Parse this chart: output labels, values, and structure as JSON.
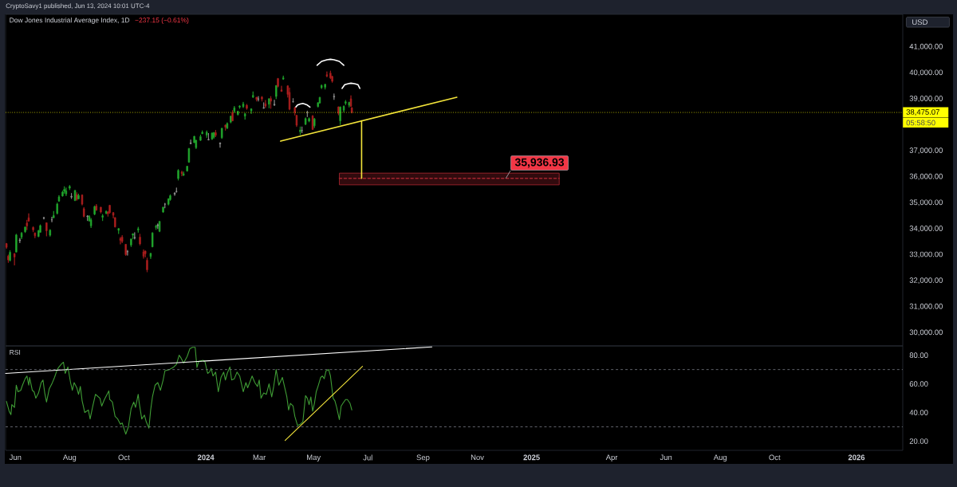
{
  "chart_data": [
    {
      "type": "candlestick",
      "title": "Dow Jones Industrial Average Index, 1D",
      "subtitle": "−237.15 (−0.61%)",
      "ylabel": "USD",
      "annotations": [
        "CryptoSavy1 published, Jun 13, 2024 10:01 UTC-4",
        "05:58:50",
        {
          "text": "35,936.93",
          "x": "2024-12-03",
          "y": 35936.93
        }
      ],
      "x": [
        "2023-05-22",
        "2023-05-24",
        "2023-05-26",
        "2023-05-31",
        "2023-06-02",
        "2023-06-06",
        "2023-06-08",
        "2023-06-12",
        "2023-06-14",
        "2023-06-16",
        "2023-06-21",
        "2023-06-23",
        "2023-06-27",
        "2023-06-29",
        "2023-07-03",
        "2023-07-06",
        "2023-07-10",
        "2023-07-12",
        "2023-07-14",
        "2023-07-18",
        "2023-07-20",
        "2023-07-24",
        "2023-07-26",
        "2023-07-28",
        "2023-08-01",
        "2023-08-03",
        "2023-08-07",
        "2023-08-09",
        "2023-08-11",
        "2023-08-15",
        "2023-08-17",
        "2023-08-21",
        "2023-08-23",
        "2023-08-25",
        "2023-08-29",
        "2023-08-31",
        "2023-09-05",
        "2023-09-07",
        "2023-09-11",
        "2023-09-13",
        "2023-09-15",
        "2023-09-19",
        "2023-09-21",
        "2023-09-25",
        "2023-09-27",
        "2023-09-29",
        "2023-10-03",
        "2023-10-05",
        "2023-10-09",
        "2023-10-11",
        "2023-10-13",
        "2023-10-17",
        "2023-10-19",
        "2023-10-23",
        "2023-10-25",
        "2023-10-27",
        "2023-10-31",
        "2023-11-02",
        "2023-11-06",
        "2023-11-08",
        "2023-11-10",
        "2023-11-14",
        "2023-11-16",
        "2023-11-20",
        "2023-11-22",
        "2023-11-27",
        "2023-11-29",
        "2023-12-01",
        "2023-12-05",
        "2023-12-07",
        "2023-12-11",
        "2023-12-13",
        "2023-12-15",
        "2023-12-19",
        "2023-12-21",
        "2023-12-26",
        "2023-12-28",
        "2024-01-02",
        "2024-01-04",
        "2024-01-08",
        "2024-01-10",
        "2024-01-12",
        "2024-01-17",
        "2024-01-19",
        "2024-01-23",
        "2024-01-25",
        "2024-01-29",
        "2024-01-31",
        "2024-02-02",
        "2024-02-06",
        "2024-02-08",
        "2024-02-12",
        "2024-02-14",
        "2024-02-16",
        "2024-02-21",
        "2024-02-23",
        "2024-02-27",
        "2024-02-29",
        "2024-03-04",
        "2024-03-06",
        "2024-03-08",
        "2024-03-12",
        "2024-03-14",
        "2024-03-18",
        "2024-03-20",
        "2024-03-22",
        "2024-03-26",
        "2024-03-28",
        "2024-04-02",
        "2024-04-04",
        "2024-04-08",
        "2024-04-10",
        "2024-04-12",
        "2024-04-16",
        "2024-04-18",
        "2024-04-22",
        "2024-04-24",
        "2024-04-26",
        "2024-04-30",
        "2024-05-02",
        "2024-05-06",
        "2024-05-08",
        "2024-05-10",
        "2024-05-14",
        "2024-05-16",
        "2024-05-20",
        "2024-05-22",
        "2024-05-24",
        "2024-05-29",
        "2024-05-31",
        "2024-06-04",
        "2024-06-06",
        "2024-06-10",
        "2024-06-12",
        "2024-06-13"
      ],
      "ohlc": [
        [
          33430,
          33450,
          33230,
          33286
        ],
        [
          32950,
          33000,
          32690,
          32800
        ],
        [
          32780,
          33170,
          32740,
          33093
        ],
        [
          33040,
          33060,
          32590,
          32908
        ],
        [
          33100,
          33800,
          33090,
          33762
        ],
        [
          33540,
          33640,
          33450,
          33573
        ],
        [
          33680,
          33870,
          33600,
          33833
        ],
        [
          33880,
          34080,
          33840,
          34066
        ],
        [
          34220,
          34340,
          33950,
          34108
        ],
        [
          34420,
          34590,
          34270,
          34299
        ],
        [
          34050,
          34090,
          33870,
          33952
        ],
        [
          33840,
          33850,
          33640,
          33727
        ],
        [
          33700,
          33950,
          33680,
          33927
        ],
        [
          33860,
          34160,
          33850,
          34122
        ],
        [
          34400,
          34460,
          34360,
          34418
        ],
        [
          34230,
          34240,
          33710,
          33922
        ],
        [
          33750,
          33980,
          33700,
          33944
        ],
        [
          34340,
          34460,
          34250,
          34347
        ],
        [
          34420,
          34680,
          34400,
          34509
        ],
        [
          34590,
          35000,
          34550,
          34952
        ],
        [
          35060,
          35290,
          35040,
          35225
        ],
        [
          35260,
          35460,
          35240,
          35411
        ],
        [
          35440,
          35630,
          35350,
          35520
        ],
        [
          35340,
          35580,
          35260,
          35459
        ],
        [
          35560,
          35680,
          35490,
          35630
        ],
        [
          35250,
          35370,
          35150,
          35216
        ],
        [
          35080,
          35490,
          35070,
          35473
        ],
        [
          35320,
          35400,
          35080,
          35124
        ],
        [
          35150,
          35350,
          35130,
          35281
        ],
        [
          35300,
          35310,
          34900,
          34946
        ],
        [
          34770,
          34830,
          34440,
          34475
        ],
        [
          34490,
          34520,
          34300,
          34464
        ],
        [
          34300,
          34520,
          34280,
          34473
        ],
        [
          34110,
          34410,
          34030,
          34347
        ],
        [
          34560,
          34890,
          34520,
          34853
        ],
        [
          34880,
          34950,
          34690,
          34722
        ],
        [
          34830,
          34840,
          34590,
          34642
        ],
        [
          34440,
          34560,
          34300,
          34501
        ],
        [
          34600,
          34700,
          34560,
          34664
        ],
        [
          34640,
          34680,
          34470,
          34576
        ],
        [
          34900,
          34920,
          34580,
          34619
        ],
        [
          34620,
          34640,
          34400,
          34518
        ],
        [
          34430,
          34440,
          34050,
          34070
        ],
        [
          33940,
          34020,
          33800,
          34007
        ],
        [
          33620,
          33680,
          33400,
          33551
        ],
        [
          33680,
          33750,
          33450,
          33508
        ],
        [
          33400,
          33410,
          32960,
          33002
        ],
        [
          33110,
          33180,
          32970,
          33120
        ],
        [
          33370,
          33620,
          33300,
          33604
        ],
        [
          33750,
          33820,
          33600,
          33804
        ],
        [
          33640,
          33860,
          33590,
          33670
        ],
        [
          33950,
          34070,
          33850,
          33998
        ],
        [
          33680,
          33800,
          33360,
          33415
        ],
        [
          33110,
          33200,
          32850,
          32937
        ],
        [
          33140,
          33160,
          32900,
          33036
        ],
        [
          32790,
          32880,
          32330,
          32418
        ],
        [
          32930,
          33060,
          32840,
          33053
        ],
        [
          33300,
          33860,
          33290,
          33840
        ],
        [
          34050,
          34150,
          33960,
          34096
        ],
        [
          34150,
          34200,
          33990,
          34112
        ],
        [
          33900,
          34290,
          33870,
          34283
        ],
        [
          34640,
          34850,
          34610,
          34828
        ],
        [
          34950,
          34990,
          34790,
          34945
        ],
        [
          34940,
          35170,
          34900,
          35151
        ],
        [
          35120,
          35320,
          35080,
          35273
        ],
        [
          35370,
          35400,
          35270,
          35333
        ],
        [
          35440,
          35580,
          35390,
          35430
        ],
        [
          35930,
          36290,
          35860,
          36246
        ],
        [
          36180,
          36230,
          36020,
          36125
        ],
        [
          36060,
          36200,
          36030,
          36117
        ],
        [
          36220,
          36420,
          36200,
          36405
        ],
        [
          36560,
          37100,
          36540,
          37090
        ],
        [
          37270,
          37430,
          37250,
          37305
        ],
        [
          37310,
          37570,
          37300,
          37557
        ],
        [
          37120,
          37420,
          37070,
          37405
        ],
        [
          37400,
          37620,
          37380,
          37545
        ],
        [
          37660,
          37780,
          37640,
          37710
        ],
        [
          37600,
          37780,
          37500,
          37715
        ],
        [
          37420,
          37680,
          37400,
          37440
        ],
        [
          37450,
          37700,
          37420,
          37683
        ],
        [
          37520,
          37720,
          37470,
          37696
        ],
        [
          37700,
          37800,
          37530,
          37593
        ],
        [
          37300,
          37320,
          37120,
          37267
        ],
        [
          37500,
          37880,
          37460,
          37864
        ],
        [
          37990,
          38010,
          37780,
          37906
        ],
        [
          37870,
          38090,
          37840,
          38049
        ],
        [
          38100,
          38350,
          38060,
          38333
        ],
        [
          38460,
          38560,
          38140,
          38150
        ],
        [
          38520,
          38720,
          38460,
          38654
        ],
        [
          38390,
          38540,
          38360,
          38521
        ],
        [
          38680,
          38750,
          38620,
          38726
        ],
        [
          38700,
          38880,
          38650,
          38797
        ],
        [
          38330,
          38450,
          38200,
          38424
        ],
        [
          38750,
          38800,
          38580,
          38628
        ],
        [
          38540,
          38630,
          38420,
          38612
        ],
        [
          39070,
          39280,
          39030,
          39131
        ],
        [
          39060,
          39070,
          38900,
          38972
        ],
        [
          38990,
          39100,
          38900,
          38996
        ],
        [
          39070,
          39100,
          38900,
          38990
        ],
        [
          38640,
          38860,
          38620,
          38661
        ],
        [
          38810,
          38950,
          38650,
          38723
        ],
        [
          38790,
          39010,
          38640,
          39005
        ],
        [
          39010,
          39100,
          38620,
          38906
        ],
        [
          38760,
          38960,
          38730,
          38790
        ],
        [
          39090,
          39520,
          38990,
          39512
        ],
        [
          39780,
          39800,
          39440,
          39476
        ],
        [
          39340,
          39500,
          39280,
          39282
        ],
        [
          39760,
          39890,
          39730,
          39807
        ],
        [
          39500,
          39520,
          39050,
          39170
        ],
        [
          39250,
          39430,
          38560,
          38597
        ],
        [
          38900,
          39020,
          38850,
          38892
        ],
        [
          38660,
          38690,
          38360,
          38462
        ],
        [
          38360,
          38380,
          37920,
          37983
        ],
        [
          37730,
          37930,
          37610,
          37799
        ],
        [
          37780,
          37930,
          37680,
          37775
        ],
        [
          38020,
          38280,
          37990,
          38240
        ],
        [
          38480,
          38540,
          38300,
          38461
        ],
        [
          38140,
          38280,
          38100,
          38240
        ],
        [
          38340,
          38370,
          37810,
          37816
        ],
        [
          37960,
          38260,
          37880,
          38226
        ],
        [
          38700,
          38860,
          38670,
          38852
        ],
        [
          38840,
          39070,
          38820,
          39056
        ],
        [
          39430,
          39550,
          39380,
          39513
        ],
        [
          39440,
          39570,
          39360,
          39558
        ],
        [
          39930,
          40050,
          39830,
          39869
        ],
        [
          39990,
          40080,
          39760,
          39807
        ],
        [
          39860,
          39890,
          39620,
          39672
        ],
        [
          39100,
          39200,
          38960,
          39070
        ],
        [
          38690,
          38700,
          38370,
          38442
        ],
        [
          38150,
          38700,
          38000,
          38686
        ],
        [
          38560,
          38740,
          38480,
          38711
        ],
        [
          38830,
          38950,
          38760,
          38886
        ],
        [
          38750,
          38880,
          38670,
          38868
        ],
        [
          39000,
          39130,
          38690,
          38712
        ],
        [
          38660,
          38670,
          38440,
          38475.07
        ]
      ],
      "colors": [
        "#b0201f",
        "#b0201f",
        "#22ab2e",
        "#b0201f",
        "#22ab2e",
        "#9a9a9a",
        "#22ab2e",
        "#22ab2e",
        "#b0201f",
        "#b0201f",
        "#b0201f",
        "#b0201f",
        "#22ab2e",
        "#22ab2e",
        "#9a9a9a",
        "#b0201f",
        "#22ab2e",
        "#9a9a9a",
        "#22ab2e",
        "#22ab2e",
        "#22ab2e",
        "#22ab2e",
        "#22ab2e",
        "#22ab2e",
        "#22ab2e",
        "#9a9a9a",
        "#22ab2e",
        "#b0201f",
        "#22ab2e",
        "#b0201f",
        "#b0201f",
        "#9a9a9a",
        "#22ab2e",
        "#22ab2e",
        "#22ab2e",
        "#b0201f",
        "#b0201f",
        "#22ab2e",
        "#22ab2e",
        "#b0201f",
        "#b0201f",
        "#b0201f",
        "#b0201f",
        "#22ab2e",
        "#b0201f",
        "#b0201f",
        "#b0201f",
        "#9a9a9a",
        "#22ab2e",
        "#22ab2e",
        "#9a9a9a",
        "#22ab2e",
        "#b0201f",
        "#b0201f",
        "#b0201f",
        "#b0201f",
        "#22ab2e",
        "#22ab2e",
        "#22ab2e",
        "#9a9a9a",
        "#22ab2e",
        "#22ab2e",
        "#9a9a9a",
        "#22ab2e",
        "#22ab2e",
        "#9a9a9a",
        "#9a9a9a",
        "#22ab2e",
        "#b0201f",
        "#22ab2e",
        "#22ab2e",
        "#22ab2e",
        "#9a9a9a",
        "#22ab2e",
        "#22ab2e",
        "#22ab2e",
        "#22ab2e",
        "#22ab2e",
        "#9a9a9a",
        "#22ab2e",
        "#22ab2e",
        "#b0201f",
        "#9a9a9a",
        "#22ab2e",
        "#b0201f",
        "#22ab2e",
        "#22ab2e",
        "#b0201f",
        "#22ab2e",
        "#22ab2e",
        "#22ab2e",
        "#22ab2e",
        "#22ab2e",
        "#b0201f",
        "#22ab2e",
        "#22ab2e",
        "#b0201f",
        "#9a9a9a",
        "#b0201f",
        "#9a9a9a",
        "#b0201f",
        "#22ab2e",
        "#b0201f",
        "#9a9a9a",
        "#22ab2e",
        "#b0201f",
        "#b0201f",
        "#22ab2e",
        "#b0201f",
        "#b0201f",
        "#9a9a9a",
        "#b0201f",
        "#b0201f",
        "#22ab2e",
        "#9a9a9a",
        "#22ab2e",
        "#9a9a9a",
        "#22ab2e",
        "#b0201f",
        "#22ab2e",
        "#22ab2e",
        "#22ab2e",
        "#22ab2e",
        "#22ab2e",
        "#b0201f",
        "#b0201f",
        "#b0201f",
        "#9a9a9a",
        "#b0201f",
        "#22ab2e",
        "#22ab2e",
        "#22ab2e",
        "#22ab2e",
        "#b0201f",
        "#b0201f"
      ],
      "series": [
        {
          "type": "line",
          "color": "#a3242e",
          "line_style": "dashed",
          "x": [
            "2024-05-30",
            "2025-02-01"
          ],
          "values": [
            35936.93,
            35936.93
          ],
          "lower": [
            35690,
            35690
          ],
          "upper": [
            36140,
            36140
          ]
        },
        {
          "type": "line",
          "color": "#f2e33a",
          "x": [
            "2024-03-25",
            "2024-10-09"
          ],
          "values": [
            37370,
            39060
          ]
        },
        {
          "type": "line",
          "color": "#f2e33a",
          "x": [
            "2024-06-24",
            "2024-06-24"
          ],
          "values": [
            38150,
            35940
          ]
        },
        {
          "type": "line",
          "color": "#ffffff",
          "x": [
            "2024-04-11",
            "2024-04-13",
            "2024-04-16",
            "2024-04-19",
            "2024-04-21",
            "2024-04-24",
            "2024-04-27"
          ],
          "values": [
            38680,
            38760,
            38800,
            38820,
            38800,
            38760,
            38680
          ]
        },
        {
          "type": "line",
          "color": "#ffffff",
          "x": [
            "2024-05-05",
            "2024-05-10",
            "2024-05-16",
            "2024-05-20",
            "2024-05-24",
            "2024-05-30",
            "2024-06-04"
          ],
          "values": [
            40290,
            40440,
            40500,
            40520,
            40500,
            40440,
            40290
          ]
        },
        {
          "type": "line",
          "color": "#ffffff",
          "x": [
            "2024-06-02",
            "2024-06-05",
            "2024-06-09",
            "2024-06-12",
            "2024-06-16",
            "2024-06-20",
            "2024-06-22"
          ],
          "values": [
            39400,
            39540,
            39580,
            39600,
            39580,
            39540,
            39400
          ]
        }
      ],
      "xlim": [
        "2023-05-21",
        "2026-02-22"
      ],
      "ylim": [
        29490,
        42250
      ],
      "yticks": [
        {
          "value": 30000,
          "label": "30,000.00"
        },
        {
          "value": 31000,
          "label": "31,000.00"
        },
        {
          "value": 32000,
          "label": "32,000.00"
        },
        {
          "value": 33000,
          "label": "33,000.00"
        },
        {
          "value": 34000,
          "label": "34,000.00"
        },
        {
          "value": 35000,
          "label": "35,000.00"
        },
        {
          "value": 36000,
          "label": "36,000.00"
        },
        {
          "value": 37000,
          "label": "37,000.00"
        },
        {
          "value": 39000,
          "label": "39,000.00"
        },
        {
          "value": 40000,
          "label": "40,000.00"
        },
        {
          "value": 41000,
          "label": "41,000.00"
        }
      ],
      "tick_labels": "y",
      "ref_lines": [
        {
          "axis": "y",
          "value": 38475.07,
          "label": "38,475.07",
          "color": "#ffff00",
          "line_style": "dotted"
        }
      ]
    },
    {
      "type": "line",
      "title": "RSI",
      "series": [
        {
          "color": "#3f9c35",
          "x": [
            "2023-05-22",
            "2023-05-25",
            "2023-05-27",
            "2023-05-28",
            "2023-05-31",
            "2023-06-02",
            "2023-06-04",
            "2023-06-07",
            "2023-06-09",
            "2023-06-12",
            "2023-06-14",
            "2023-06-16",
            "2023-06-17",
            "2023-06-20",
            "2023-06-22",
            "2023-06-24",
            "2023-06-27",
            "2023-06-30",
            "2023-07-02",
            "2023-07-04",
            "2023-07-06",
            "2023-07-09",
            "2023-07-12",
            "2023-07-15",
            "2023-07-18",
            "2023-07-20",
            "2023-07-23",
            "2023-07-25",
            "2023-07-27",
            "2023-07-30",
            "2023-08-02",
            "2023-08-04",
            "2023-08-06",
            "2023-08-09",
            "2023-08-11",
            "2023-08-13",
            "2023-08-15",
            "2023-08-18",
            "2023-08-22",
            "2023-08-24",
            "2023-08-27",
            "2023-08-30",
            "2023-09-04",
            "2023-09-06",
            "2023-09-09",
            "2023-09-14",
            "2023-09-15",
            "2023-09-18",
            "2023-09-21",
            "2023-09-24",
            "2023-09-27",
            "2023-09-29",
            "2023-10-03",
            "2023-10-06",
            "2023-10-09",
            "2023-10-12",
            "2023-10-14",
            "2023-10-17",
            "2023-10-18",
            "2023-10-21",
            "2023-10-24",
            "2023-10-26",
            "2023-10-29",
            "2023-10-31",
            "2023-11-02",
            "2023-11-05",
            "2023-11-08",
            "2023-11-11",
            "2023-11-14",
            "2023-11-16",
            "2023-11-21",
            "2023-11-26",
            "2023-11-29",
            "2023-12-02",
            "2023-12-04",
            "2023-12-07",
            "2023-12-11",
            "2023-12-14",
            "2023-12-17",
            "2023-12-20",
            "2023-12-22",
            "2023-12-24",
            "2023-12-29",
            "2023-12-31",
            "2024-01-03",
            "2024-01-05",
            "2024-01-07",
            "2024-01-09",
            "2024-01-12",
            "2024-01-15",
            "2024-01-18",
            "2024-01-21",
            "2024-01-23",
            "2024-01-25",
            "2024-01-28",
            "2024-01-30",
            "2024-02-02",
            "2024-02-05",
            "2024-02-08",
            "2024-02-12",
            "2024-02-15",
            "2024-02-17",
            "2024-02-22",
            "2024-02-25",
            "2024-02-28",
            "2024-03-01",
            "2024-03-03",
            "2024-03-06",
            "2024-03-09",
            "2024-03-12",
            "2024-03-15",
            "2024-03-17",
            "2024-03-20",
            "2024-03-23",
            "2024-03-27",
            "2024-03-30",
            "2024-04-01",
            "2024-04-03",
            "2024-04-05",
            "2024-04-08",
            "2024-04-10",
            "2024-04-13",
            "2024-04-16",
            "2024-04-19",
            "2024-04-22",
            "2024-04-24",
            "2024-04-26",
            "2024-04-28",
            "2024-04-30",
            "2024-05-02",
            "2024-05-04",
            "2024-05-06",
            "2024-05-09",
            "2024-05-11",
            "2024-05-13",
            "2024-05-15",
            "2024-05-18",
            "2024-05-20",
            "2024-05-23",
            "2024-05-25",
            "2024-05-27",
            "2024-05-30",
            "2024-06-01",
            "2024-06-03",
            "2024-06-06",
            "2024-06-08",
            "2024-06-11",
            "2024-06-13"
          ],
          "values": [
            47.8,
            40.9,
            38.5,
            45.5,
            43.6,
            59.1,
            54.5,
            55.5,
            59.1,
            63.6,
            65.5,
            59.1,
            64.5,
            55.5,
            54.5,
            50.0,
            53.6,
            60.9,
            62.7,
            53.6,
            47.3,
            56.4,
            60.0,
            64.5,
            70.0,
            71.8,
            74.0,
            75.1,
            67.3,
            71.8,
            60.9,
            55.5,
            60.9,
            57.3,
            52.7,
            58.2,
            48.2,
            40.0,
            41.8,
            35.5,
            44.5,
            52.7,
            50.0,
            44.5,
            49.1,
            55.1,
            49.1,
            47.3,
            37.3,
            35.5,
            31.8,
            32.7,
            24.9,
            30.0,
            42.7,
            47.3,
            43.6,
            52.7,
            47.3,
            35.5,
            38.2,
            33.6,
            29.1,
            41.8,
            50.9,
            59.1,
            60.9,
            55.5,
            62.7,
            69.1,
            70.0,
            71.8,
            73.6,
            80.0,
            78.2,
            74.5,
            79.1,
            84.5,
            85.5,
            85.5,
            71.5,
            75.8,
            76.4,
            75.5,
            67.3,
            68.2,
            70.9,
            65.5,
            68.2,
            54.5,
            64.5,
            68.2,
            62.7,
            67.3,
            71.8,
            62.7,
            63.6,
            68.2,
            65.5,
            54.5,
            60.9,
            57.3,
            65.5,
            60.9,
            58.2,
            62.7,
            50.0,
            53.6,
            52.7,
            60.0,
            50.9,
            57.3,
            70.0,
            59.1,
            64.5,
            56.4,
            50.9,
            41.8,
            46.4,
            44.5,
            37.3,
            30.9,
            31.8,
            33.6,
            51.8,
            50.0,
            45.5,
            50.9,
            40.9,
            46.4,
            54.5,
            58.2,
            64.5,
            65.5,
            63.6,
            69.1,
            70.0,
            65.5,
            50.0,
            48.2,
            43.6,
            35.1,
            44.5,
            46.4,
            49.1,
            49.1,
            46.4,
            41.8
          ]
        },
        {
          "color": "#ffffff",
          "x": [
            "2023-05-21",
            "2024-09-11"
          ],
          "values": [
            67.3,
            85.8
          ]
        },
        {
          "color": "#f2e33a",
          "x": [
            "2024-03-30",
            "2024-06-25"
          ],
          "values": [
            20.5,
            72.2
          ]
        }
      ],
      "xlim": [
        "2023-05-21",
        "2026-02-22"
      ],
      "xticks": [
        {
          "value": "2023-06-01",
          "label": "Jun"
        },
        {
          "value": "2023-08-01",
          "label": "Aug"
        },
        {
          "value": "2023-10-01",
          "label": "Oct"
        },
        {
          "value": "2024-01-01",
          "label": "2024"
        },
        {
          "value": "2024-03-01",
          "label": "Mar"
        },
        {
          "value": "2024-05-01",
          "label": "May"
        },
        {
          "value": "2024-07-01",
          "label": "Jul"
        },
        {
          "value": "2024-09-01",
          "label": "Sep"
        },
        {
          "value": "2024-11-01",
          "label": "Nov"
        },
        {
          "value": "2025-01-01",
          "label": "2025"
        },
        {
          "value": "2025-04-01",
          "label": "Apr"
        },
        {
          "value": "2025-06-01",
          "label": "Jun"
        },
        {
          "value": "2025-08-01",
          "label": "Aug"
        },
        {
          "value": "2025-10-01",
          "label": "Oct"
        },
        {
          "value": "2026-01-01",
          "label": "2026"
        }
      ],
      "ylim": [
        13.6,
        86.5
      ],
      "yticks": [
        {
          "value": 20,
          "label": "20.00"
        },
        {
          "value": 40,
          "label": "40.00"
        },
        {
          "value": 60,
          "label": "60.00"
        },
        {
          "value": 80,
          "label": "80.00"
        }
      ],
      "ref_lines": [
        {
          "axis": "y",
          "value": 70,
          "color": "#787b86",
          "line_style": "dashed"
        },
        {
          "axis": "y",
          "value": 30,
          "color": "#787b86",
          "line_style": "dashed"
        }
      ]
    }
  ]
}
